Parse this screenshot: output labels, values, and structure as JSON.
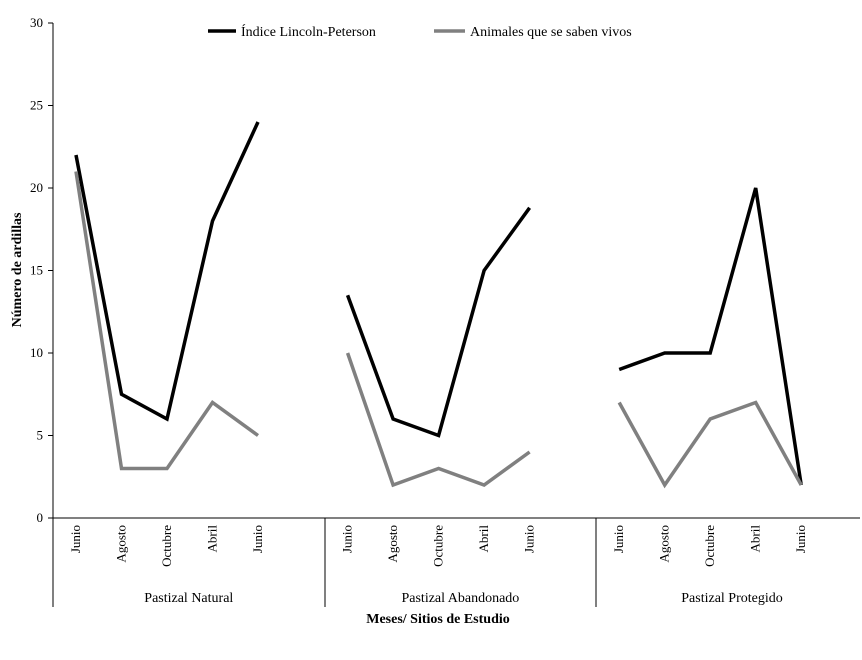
{
  "chart_data": {
    "type": "line",
    "ylabel": "Número de ardillas",
    "xlabel": "Meses/ Sitios de Estudio",
    "ylim": [
      0,
      30
    ],
    "yticks": [
      0,
      5,
      10,
      15,
      20,
      25,
      30
    ],
    "grid": false,
    "legend_position": "top",
    "groups": [
      {
        "label": "Pastizal Natural",
        "months": [
          "Junio",
          "Agosto",
          "Octubre",
          "Abril",
          "Junio"
        ]
      },
      {
        "label": "Pastizal Abandonado",
        "months": [
          "Junio",
          "Agosto",
          "Octubre",
          "Abril",
          "Junio"
        ]
      },
      {
        "label": "Pastizal Protegido",
        "months": [
          "Junio",
          "Agosto",
          "Octubre",
          "Abril",
          "Junio"
        ]
      }
    ],
    "series": [
      {
        "name": "Índice Lincoln-Peterson",
        "color": "#000000",
        "values": [
          [
            22,
            7.5,
            6,
            18,
            24
          ],
          [
            13.5,
            6,
            5,
            15,
            18.8
          ],
          [
            9,
            10,
            10,
            20,
            2
          ]
        ]
      },
      {
        "name": "Animales que se saben vivos",
        "color": "#808080",
        "values": [
          [
            21,
            3,
            3,
            7,
            5
          ],
          [
            10,
            2,
            3,
            2,
            4
          ],
          [
            7,
            2,
            6,
            7,
            2
          ]
        ]
      }
    ]
  }
}
